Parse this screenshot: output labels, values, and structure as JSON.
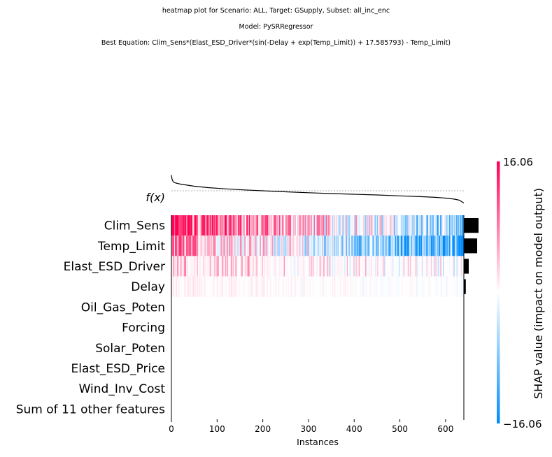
{
  "titles": {
    "line1": "heatmap plot for Scenario: ALL, Target: GSupply, Subset: all_inc_enc",
    "line2": "Model: PySRRegressor",
    "line3": "Best Equation: Clim_Sens*(Elast_ESD_Driver*(sin(-Delay + exp(Temp_Limit)) + 17.585793) - Temp_Limit)"
  },
  "chart_data": {
    "type": "heatmap",
    "xlabel": "Instances",
    "x_ticks": [
      0,
      100,
      200,
      300,
      400,
      500,
      600
    ],
    "xlim": [
      0,
      640
    ],
    "fx_label": "f(x)",
    "features": [
      "Clim_Sens",
      "Temp_Limit",
      "Elast_ESD_Driver",
      "Delay",
      "Oil_Gas_Poten",
      "Forcing",
      "Solar_Poten",
      "Elast_ESD_Price",
      "Wind_Inv_Cost",
      "Sum of 11 other features"
    ],
    "mean_abs_shap": [
      7.5,
      6.8,
      2.5,
      1.0,
      0,
      0,
      0,
      0,
      0,
      0
    ],
    "fx_curve": {
      "x": [
        0,
        1,
        3,
        6,
        10,
        20,
        35,
        50,
        80,
        120,
        160,
        200,
        250,
        300,
        350,
        400,
        450,
        500,
        550,
        580,
        600,
        620,
        630,
        640
      ],
      "y": [
        0.95,
        0.85,
        0.78,
        0.74,
        0.72,
        0.69,
        0.66,
        0.63,
        0.59,
        0.555,
        0.525,
        0.5,
        0.47,
        0.445,
        0.42,
        0.4,
        0.38,
        0.355,
        0.33,
        0.31,
        0.29,
        0.26,
        0.23,
        0.15
      ],
      "baseline": 0.5
    },
    "colorbar": {
      "label": "SHAP value (impact on model output)",
      "max_label": "16.06",
      "min_label": "−16.06",
      "max": 16.06,
      "min": -16.06,
      "colors": [
        "#008bfb",
        "#ffffff",
        "#ff0052"
      ]
    },
    "row_color_profiles": {
      "Clim_Sens": {
        "start": 0.95,
        "end": -0.55,
        "noise": 0.55,
        "sparsity": 0.15
      },
      "Temp_Limit": {
        "start": 0.5,
        "end": -0.85,
        "noise": 0.45,
        "sparsity": 0.05
      },
      "Elast_ESD_Driver": {
        "start": 0.28,
        "end": -0.05,
        "noise": 0.3,
        "sparsity": 0.55
      },
      "Delay": {
        "start": 0.08,
        "end": -0.04,
        "noise": 0.07,
        "sparsity": 0.4
      }
    }
  }
}
